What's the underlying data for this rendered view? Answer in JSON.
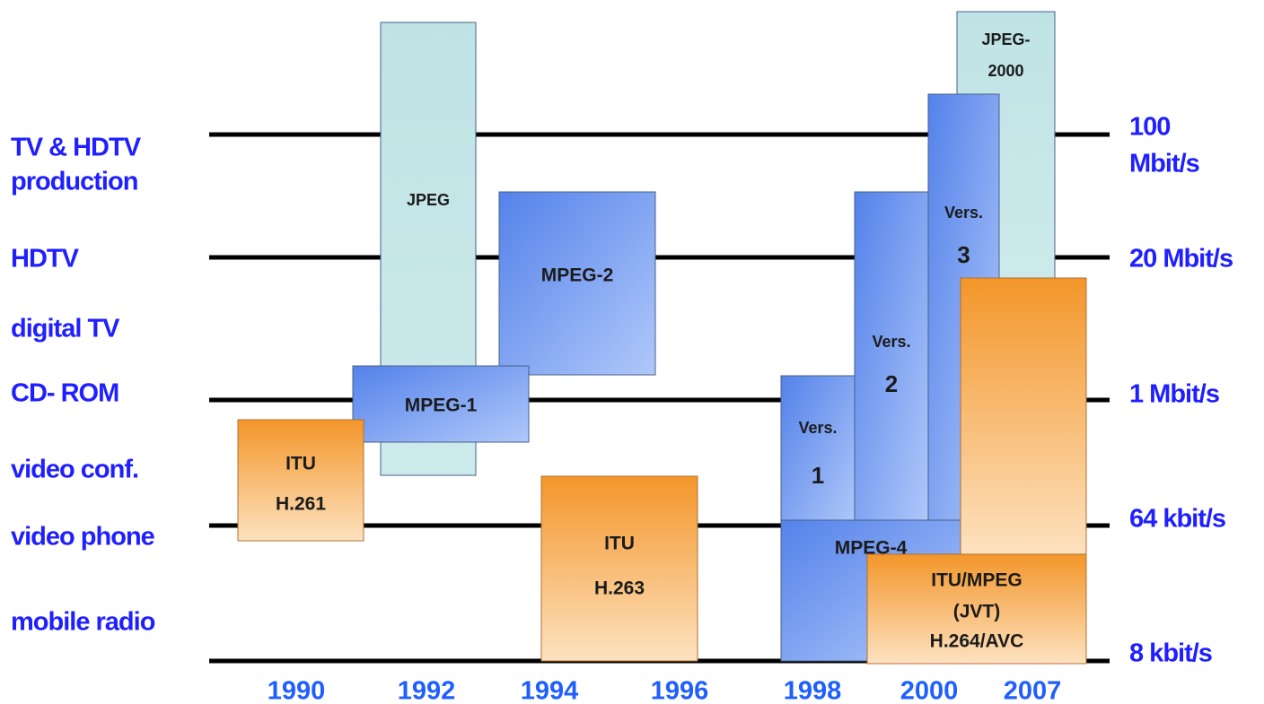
{
  "row_labels": [
    [
      "TV & HDTV",
      "production"
    ],
    [
      "HDTV"
    ],
    [
      "digital TV"
    ],
    [
      "CD- ROM"
    ],
    [
      "video conf."
    ],
    [
      "video phone"
    ],
    [
      "mobile radio"
    ]
  ],
  "rate_labels": [
    [
      "100",
      "Mbit/s"
    ],
    [
      "20 Mbit/s"
    ],
    [
      "1 Mbit/s"
    ],
    [
      "64 kbit/s"
    ],
    [
      "8 kbit/s"
    ]
  ],
  "years": [
    "1990",
    "1992",
    "1994",
    "1996",
    "1998",
    "2000",
    "2007"
  ],
  "boxes": [
    {
      "lines": [
        "JPEG"
      ]
    },
    {
      "lines": [
        "MPEG-2"
      ]
    },
    {
      "lines": [
        "MPEG-1"
      ]
    },
    {
      "lines": [
        "ITU",
        "H.261"
      ]
    },
    {
      "lines": [
        "ITU",
        "H.263"
      ]
    },
    {
      "lines": [
        "JPEG-",
        "2000"
      ]
    },
    {
      "lines": [
        "Vers.",
        "3"
      ]
    },
    {
      "lines": [
        "Vers.",
        "2"
      ]
    },
    {
      "lines": [
        "Vers.",
        "1"
      ]
    },
    {
      "lines": [
        "MPEG-4"
      ]
    },
    {
      "lines": [
        "ITU/MPEG",
        "(JVT)",
        "H.264/AVC"
      ]
    }
  ]
}
